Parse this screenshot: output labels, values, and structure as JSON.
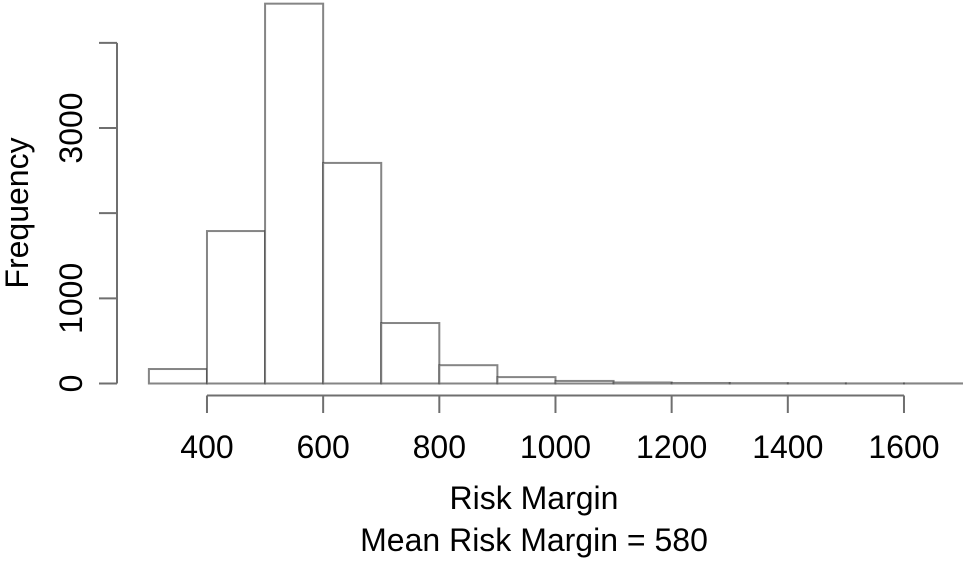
{
  "figure": {
    "background": "#ffffff"
  },
  "chart_data": {
    "type": "bar",
    "subtype": "histogram",
    "title": "",
    "xlabel": "Risk Margin",
    "xlabel_line2": "Mean Risk Margin = 580",
    "ylabel": "Frequency",
    "mean_risk_margin": 580,
    "bin_edges": [
      300,
      400,
      500,
      600,
      700,
      800,
      900,
      1000,
      1100,
      1200,
      1300,
      1400,
      1500,
      1600,
      1700
    ],
    "counts": [
      170,
      1790,
      4460,
      2590,
      710,
      215,
      75,
      30,
      12,
      6,
      4,
      2,
      1,
      1
    ],
    "x_ticks": [
      {
        "value": 400,
        "label": "400"
      },
      {
        "value": 600,
        "label": "600"
      },
      {
        "value": 800,
        "label": "800"
      },
      {
        "value": 1000,
        "label": "1000"
      },
      {
        "value": 1200,
        "label": "1200"
      },
      {
        "value": 1400,
        "label": "1400"
      },
      {
        "value": 1600,
        "label": "1600"
      }
    ],
    "y_ticks": [
      {
        "value": 0,
        "label": "0"
      },
      {
        "value": 1000,
        "label": "1000"
      },
      {
        "value": 2000,
        "label": ""
      },
      {
        "value": 3000,
        "label": "3000"
      },
      {
        "value": 4000,
        "label": ""
      }
    ],
    "xlim": [
      300,
      1700
    ],
    "ylim": [
      0,
      4460
    ],
    "grid": false,
    "legend": null,
    "bar_fill": "#ffffff",
    "bar_border": "#3a3a3a",
    "axis_color": "#6f6f6f",
    "text_color": "#000000"
  }
}
